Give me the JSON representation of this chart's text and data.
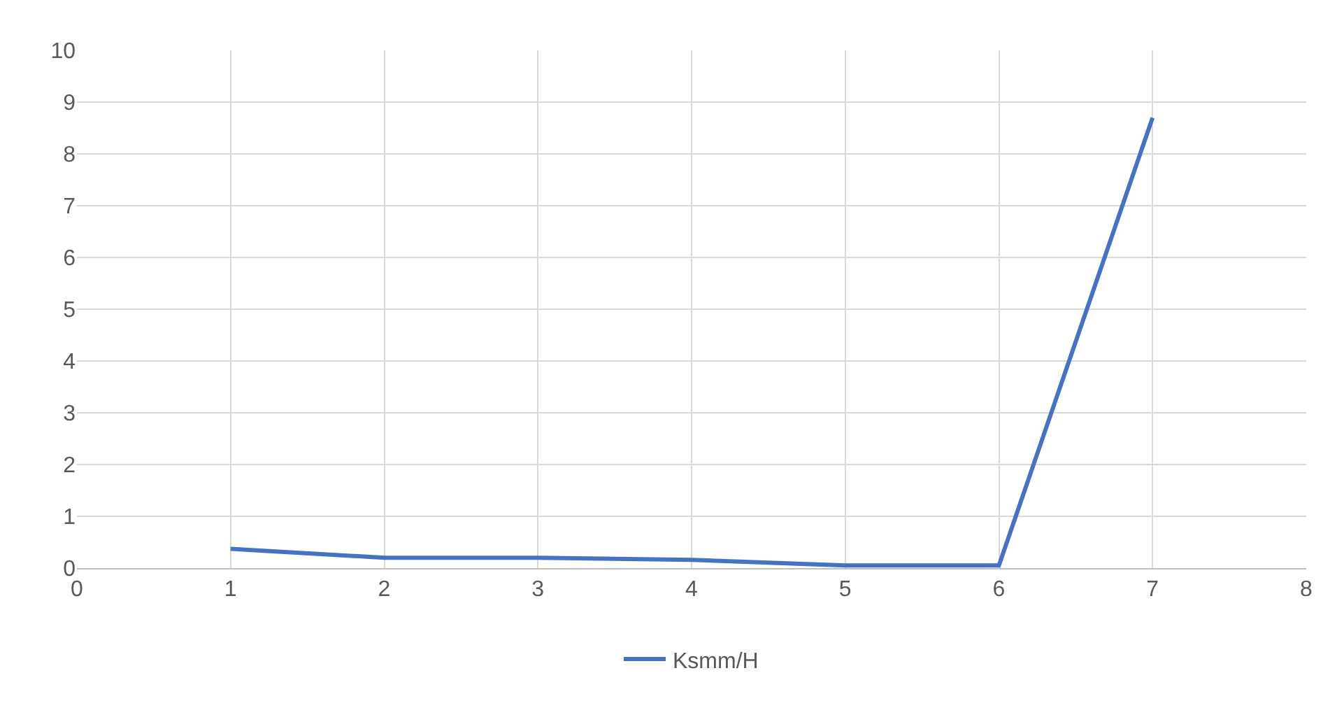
{
  "chart_data": {
    "type": "line",
    "x": [
      1,
      2,
      3,
      4,
      5,
      6,
      7
    ],
    "series": [
      {
        "name": "Ksmm/H",
        "color": "#4472c4",
        "values": [
          0.37,
          0.2,
          0.2,
          0.16,
          0.05,
          0.05,
          8.7
        ]
      }
    ],
    "xlim": [
      0,
      8
    ],
    "xticks": [
      0,
      1,
      2,
      3,
      4,
      5,
      6,
      7,
      8
    ],
    "ylim": [
      0,
      10
    ],
    "yticks": [
      0,
      1,
      2,
      3,
      4,
      5,
      6,
      7,
      8,
      9,
      10
    ],
    "grid": true,
    "legend": "bottom",
    "marker": "none",
    "line_style": "solid"
  }
}
